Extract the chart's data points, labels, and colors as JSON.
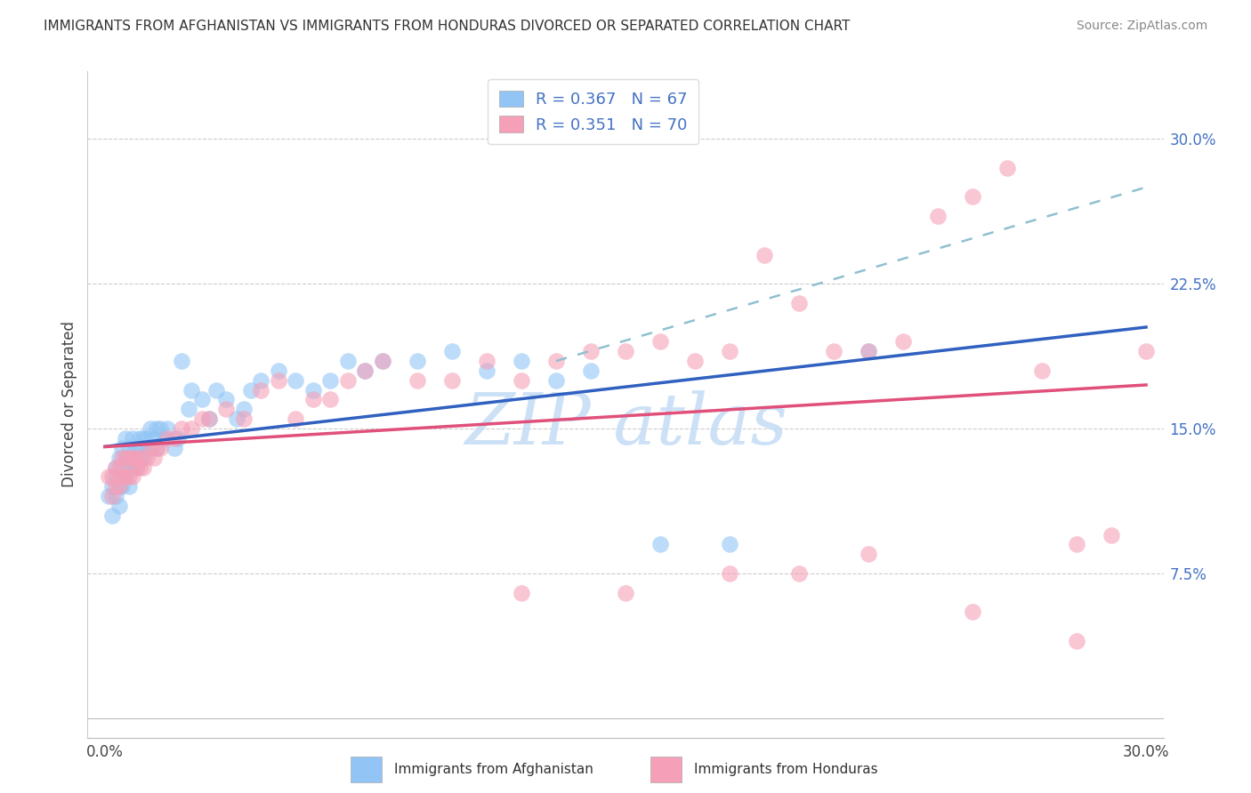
{
  "title": "IMMIGRANTS FROM AFGHANISTAN VS IMMIGRANTS FROM HONDURAS DIVORCED OR SEPARATED CORRELATION CHART",
  "source": "Source: ZipAtlas.com",
  "ylabel": "Divorced or Separated",
  "xlim": [
    0.0,
    0.3
  ],
  "ylim": [
    0.0,
    0.32
  ],
  "x_ticks": [
    0.0,
    0.3
  ],
  "x_tick_labels": [
    "0.0%",
    "30.0%"
  ],
  "y_ticks_right": [
    0.075,
    0.15,
    0.225,
    0.3
  ],
  "y_tick_labels_right": [
    "7.5%",
    "15.0%",
    "22.5%",
    "30.0%"
  ],
  "blue_color": "#92C5F5",
  "pink_color": "#F5A0B8",
  "trend_blue": "#3060C0",
  "trend_pink": "#E0507A",
  "trend_gray_dash": "#90C0D0",
  "watermark_color": "#C5DCF5",
  "afghanistan_x": [
    0.001,
    0.002,
    0.002,
    0.003,
    0.003,
    0.003,
    0.004,
    0.004,
    0.004,
    0.005,
    0.005,
    0.005,
    0.006,
    0.006,
    0.006,
    0.007,
    0.007,
    0.007,
    0.008,
    0.008,
    0.008,
    0.009,
    0.009,
    0.01,
    0.01,
    0.01,
    0.011,
    0.011,
    0.012,
    0.012,
    0.013,
    0.013,
    0.014,
    0.015,
    0.015,
    0.016,
    0.017,
    0.018,
    0.02,
    0.021,
    0.022,
    0.024,
    0.025,
    0.028,
    0.03,
    0.032,
    0.035,
    0.038,
    0.04,
    0.042,
    0.045,
    0.05,
    0.055,
    0.06,
    0.065,
    0.07,
    0.075,
    0.08,
    0.09,
    0.1,
    0.11,
    0.12,
    0.13,
    0.14,
    0.16,
    0.18,
    0.22
  ],
  "afghanistan_y": [
    0.115,
    0.12,
    0.105,
    0.13,
    0.115,
    0.125,
    0.135,
    0.12,
    0.11,
    0.14,
    0.13,
    0.12,
    0.145,
    0.135,
    0.125,
    0.14,
    0.13,
    0.12,
    0.145,
    0.135,
    0.13,
    0.14,
    0.13,
    0.145,
    0.14,
    0.135,
    0.145,
    0.135,
    0.145,
    0.14,
    0.15,
    0.14,
    0.145,
    0.15,
    0.14,
    0.15,
    0.145,
    0.15,
    0.14,
    0.145,
    0.185,
    0.16,
    0.17,
    0.165,
    0.155,
    0.17,
    0.165,
    0.155,
    0.16,
    0.17,
    0.175,
    0.18,
    0.175,
    0.17,
    0.175,
    0.185,
    0.18,
    0.185,
    0.185,
    0.19,
    0.18,
    0.185,
    0.175,
    0.18,
    0.09,
    0.09,
    0.19
  ],
  "honduras_x": [
    0.001,
    0.002,
    0.002,
    0.003,
    0.003,
    0.004,
    0.004,
    0.005,
    0.005,
    0.006,
    0.006,
    0.007,
    0.007,
    0.008,
    0.008,
    0.009,
    0.009,
    0.01,
    0.01,
    0.011,
    0.012,
    0.013,
    0.014,
    0.015,
    0.016,
    0.018,
    0.02,
    0.022,
    0.025,
    0.028,
    0.03,
    0.035,
    0.04,
    0.045,
    0.05,
    0.055,
    0.06,
    0.065,
    0.07,
    0.075,
    0.08,
    0.09,
    0.1,
    0.11,
    0.12,
    0.13,
    0.14,
    0.15,
    0.16,
    0.17,
    0.18,
    0.19,
    0.2,
    0.21,
    0.22,
    0.23,
    0.24,
    0.25,
    0.26,
    0.27,
    0.28,
    0.29,
    0.3,
    0.12,
    0.15,
    0.18,
    0.2,
    0.22,
    0.25,
    0.28
  ],
  "honduras_y": [
    0.125,
    0.125,
    0.115,
    0.13,
    0.12,
    0.13,
    0.12,
    0.135,
    0.125,
    0.135,
    0.125,
    0.135,
    0.125,
    0.135,
    0.125,
    0.135,
    0.13,
    0.135,
    0.13,
    0.13,
    0.135,
    0.14,
    0.135,
    0.14,
    0.14,
    0.145,
    0.145,
    0.15,
    0.15,
    0.155,
    0.155,
    0.16,
    0.155,
    0.17,
    0.175,
    0.155,
    0.165,
    0.165,
    0.175,
    0.18,
    0.185,
    0.175,
    0.175,
    0.185,
    0.175,
    0.185,
    0.19,
    0.19,
    0.195,
    0.185,
    0.19,
    0.24,
    0.215,
    0.19,
    0.19,
    0.195,
    0.26,
    0.27,
    0.285,
    0.18,
    0.09,
    0.095,
    0.19,
    0.065,
    0.065,
    0.075,
    0.075,
    0.085,
    0.055,
    0.04
  ]
}
